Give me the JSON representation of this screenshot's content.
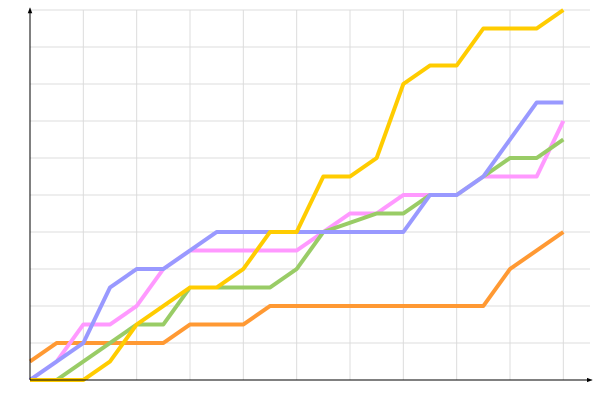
{
  "chart_data": {
    "type": "line",
    "x": [
      0,
      1,
      2,
      3,
      4,
      5,
      6,
      7,
      8,
      9,
      10,
      11,
      12,
      13,
      14,
      15,
      16,
      17,
      18,
      19,
      20
    ],
    "series": [
      {
        "color": "#ff9933",
        "values": [
          1,
          2,
          2,
          2,
          2,
          2,
          3,
          3,
          3,
          4,
          4,
          4,
          4,
          4,
          4,
          4,
          4,
          4,
          6,
          7,
          8
        ]
      },
      {
        "color": "#ff99ff",
        "values": [
          0,
          1,
          3,
          3,
          4,
          6,
          7,
          7,
          7,
          7,
          7,
          8,
          9,
          9,
          10,
          10,
          10,
          11,
          11,
          11,
          14
        ]
      },
      {
        "color": "#99cc66",
        "values": [
          0,
          0,
          1,
          2,
          3,
          3,
          5,
          5,
          5,
          5,
          6,
          8,
          8.5,
          9,
          9,
          10,
          10,
          11,
          12,
          12,
          13
        ]
      },
      {
        "color": "#9999ff",
        "values": [
          0,
          1,
          2,
          5,
          6,
          6,
          7,
          8,
          8,
          8,
          8,
          8,
          8,
          8,
          8,
          10,
          10,
          11,
          13,
          15,
          15
        ]
      },
      {
        "color": "#ffcc00",
        "values": [
          0,
          0,
          0,
          1,
          3,
          4,
          5,
          5,
          6,
          8,
          8,
          11,
          11,
          12,
          16,
          17,
          17,
          19,
          19,
          19,
          20
        ]
      }
    ],
    "xlim": [
      0,
      21
    ],
    "ylim": [
      0,
      20
    ],
    "xticks": [
      0,
      2,
      4,
      6,
      8,
      10,
      12,
      14,
      16,
      18,
      20
    ],
    "yticks": [
      0,
      2,
      4,
      6,
      8,
      10,
      12,
      14,
      16,
      18,
      20
    ],
    "grid": true
  }
}
